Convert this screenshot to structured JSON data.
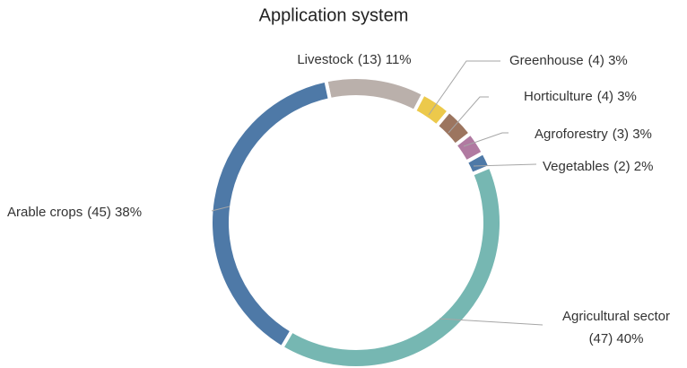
{
  "chart_data": {
    "type": "donut",
    "title": "Application system",
    "categories": [
      "Livestock",
      "Greenhouse",
      "Horticulture",
      "Agroforestry",
      "Vegetables",
      "Agricultural sector",
      "Arable crops"
    ],
    "values": [
      13,
      4,
      4,
      3,
      2,
      47,
      45
    ],
    "value_labels": [
      "(13) 11%",
      "(4) 3%",
      "(4) 3%",
      "(3) 3%",
      "(2) 2%",
      "(47) 40%",
      "(45) 38%"
    ],
    "colors": [
      "#bab0ab",
      "#ecc94b",
      "#9c755f",
      "#b07aa1",
      "#4e79a7",
      "#76b7b2",
      "#4e79a7"
    ]
  }
}
